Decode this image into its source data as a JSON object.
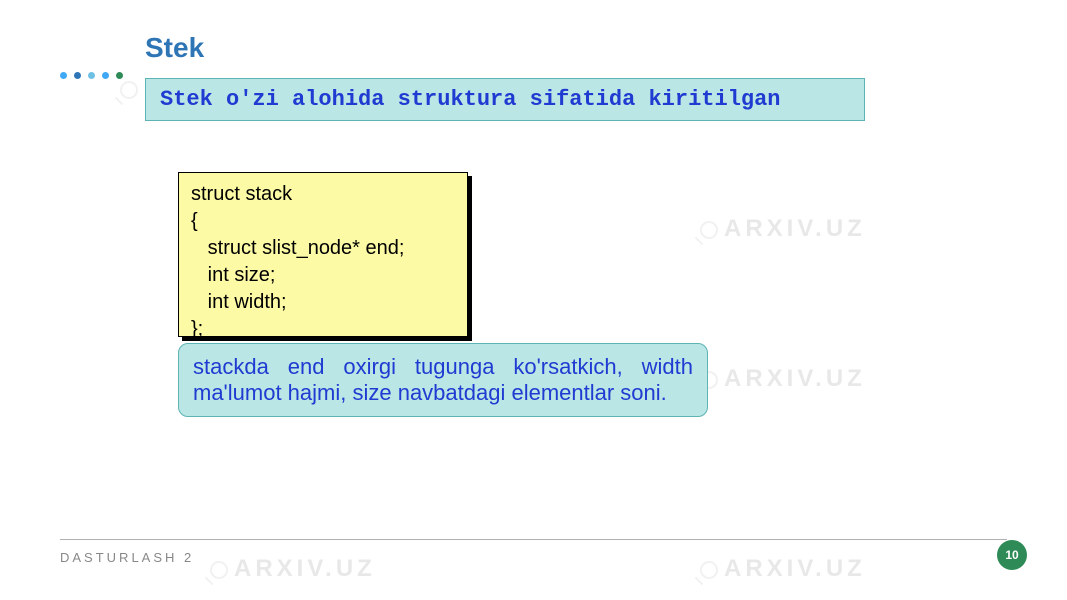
{
  "title": {
    "text": "Stek",
    "color": "#2e75b6"
  },
  "banner": {
    "text": "Stek o'zi alohida struktura sifatida kiritilgan",
    "bg_color": "#bbe6e6",
    "border_color": "#5eb3b3",
    "text_color": "#1f3bd1"
  },
  "code": {
    "lines": "struct stack\n{\n   struct slist_node* end;\n   int size;\n   int width;\n};",
    "bg_color": "#fdfaa6",
    "text_color": "#000000"
  },
  "desc": {
    "text": "stackda end oxirgi tugunga ko'rsatkich, width ma'lumot hajmi, size navbatdagi elementlar soni.",
    "bg_color": "#bbe6e6",
    "border_color": "#5eb3b3",
    "text_color": "#1f3bd1"
  },
  "dots": {
    "colors": [
      "#3fa9f5",
      "#2e75b6",
      "#6ec1e4",
      "#3fa9f5",
      "#2e8b57"
    ]
  },
  "footer": {
    "text": "DASTURLASH 2",
    "page_number": "10",
    "badge_color": "#2e8b57"
  },
  "watermark": {
    "text": "ARXIV.UZ"
  }
}
